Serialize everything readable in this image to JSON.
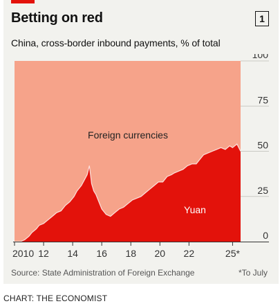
{
  "header": {
    "title": "Betting on red",
    "chart_number": "1",
    "subtitle": "China, cross-border inbound payments, % of total"
  },
  "footer": {
    "source": "Source: State Administration of Foreign Exchange",
    "footnote": "*To July",
    "credit": "CHART: THE ECONOMIST"
  },
  "colors": {
    "background": "#f2f2ee",
    "foreign": "#f6a38a",
    "yuan": "#e3120b",
    "accent": "#e3120b"
  },
  "chart_data": {
    "type": "area",
    "stacked": true,
    "title": "Betting on red",
    "subtitle": "China, cross-border inbound payments, % of total",
    "ylim": [
      0,
      100
    ],
    "yticks": [
      "100",
      "75",
      "50",
      "25",
      "0"
    ],
    "xlim": [
      2010.0,
      2025.55
    ],
    "xticks": [
      {
        "value": 2010,
        "label": "2010"
      },
      {
        "value": 2012,
        "label": "12"
      },
      {
        "value": 2014,
        "label": "14"
      },
      {
        "value": 2016,
        "label": "16"
      },
      {
        "value": 2018,
        "label": "18"
      },
      {
        "value": 2020,
        "label": "20"
      },
      {
        "value": 2022,
        "label": "22"
      },
      {
        "value": 2025,
        "label": "25*"
      }
    ],
    "grid": true,
    "series": [
      {
        "name": "Yuan",
        "x": [
          2010.0,
          2010.4,
          2010.7,
          2011.0,
          2011.2,
          2011.5,
          2011.7,
          2012.0,
          2012.3,
          2012.6,
          2012.9,
          2013.2,
          2013.5,
          2013.8,
          2014.1,
          2014.3,
          2014.6,
          2014.8,
          2015.0,
          2015.15,
          2015.3,
          2015.45,
          2015.6,
          2015.8,
          2016.0,
          2016.3,
          2016.6,
          2016.9,
          2017.2,
          2017.5,
          2017.8,
          2018.1,
          2018.4,
          2018.7,
          2019.0,
          2019.3,
          2019.6,
          2019.9,
          2020.2,
          2020.5,
          2020.8,
          2021.0,
          2021.3,
          2021.6,
          2021.9,
          2022.2,
          2022.5,
          2022.8,
          2023.0,
          2023.3,
          2023.6,
          2023.9,
          2024.2,
          2024.5,
          2024.8,
          2025.0,
          2025.3,
          2025.55
        ],
        "values": [
          0,
          0,
          1,
          3,
          5,
          7,
          9,
          10,
          12,
          14,
          16,
          17,
          20,
          22,
          25,
          28,
          31,
          34,
          37,
          42,
          32,
          28,
          26,
          22,
          18,
          15,
          14,
          16,
          18,
          19,
          21,
          23,
          24,
          25,
          27,
          29,
          31,
          33,
          33,
          36,
          37,
          38,
          39,
          40,
          42,
          43,
          43,
          46,
          48,
          49,
          50,
          51,
          52,
          51,
          53,
          52,
          54,
          50
        ]
      },
      {
        "name": "Foreign currencies",
        "note": "remainder to 100%"
      }
    ],
    "annotations": {
      "foreign_label": "Foreign currencies",
      "yuan_label": "Yuan"
    }
  }
}
